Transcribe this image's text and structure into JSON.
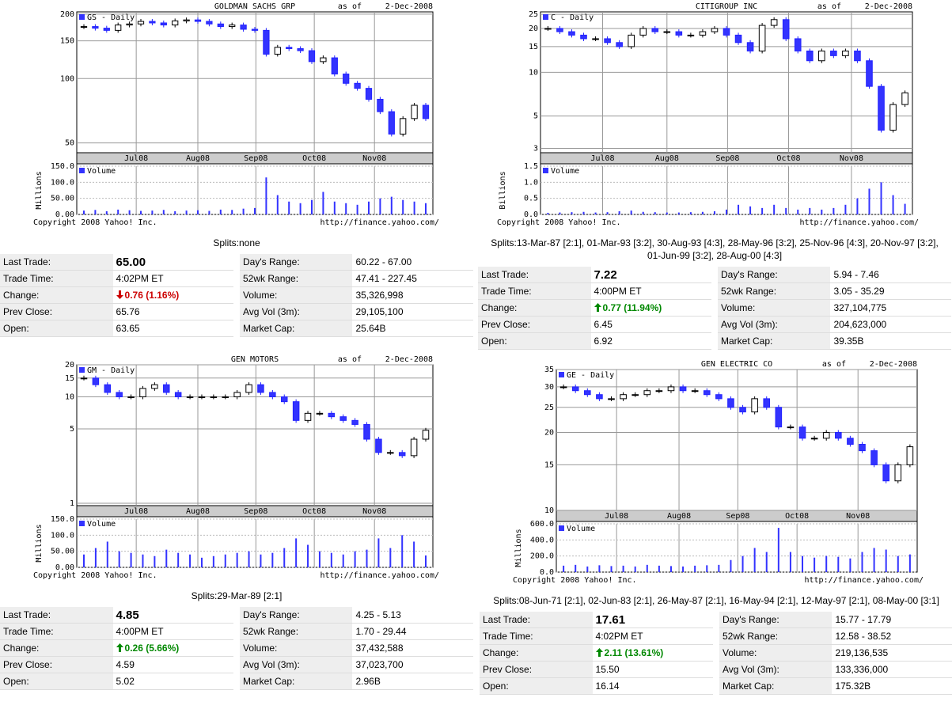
{
  "panels": [
    {
      "title": "GOLDMAN SACHS GRP",
      "as_of": "as of",
      "date": "2-Dec-2008",
      "months": [
        "Jul08",
        "Aug08",
        "Sep08",
        "Oct08",
        "Nov08"
      ],
      "price": {
        "type": "candlestick",
        "legend": "GS - Daily",
        "log_scale": true,
        "ylim": [
          45,
          205
        ],
        "yticks": [
          50,
          100,
          150,
          200
        ],
        "values": [
          175,
          172,
          168,
          178,
          180,
          185,
          182,
          178,
          186,
          188,
          185,
          180,
          175,
          178,
          170,
          168,
          130,
          140,
          138,
          135,
          120,
          125,
          105,
          95,
          90,
          80,
          70,
          55,
          65,
          75,
          65
        ]
      },
      "volume": {
        "type": "bar",
        "legend": "Volume",
        "axis_label": "Millions",
        "ylim": [
          0,
          150
        ],
        "yticks": [
          {
            "value": 0,
            "label": "0.00"
          },
          {
            "value": 50,
            "label": "50.00"
          },
          {
            "value": 100,
            "label": "100.0"
          },
          {
            "value": 150,
            "label": "150.0"
          }
        ],
        "values": [
          12,
          14,
          10,
          15,
          13,
          11,
          12,
          14,
          10,
          12,
          13,
          11,
          15,
          14,
          18,
          20,
          115,
          60,
          40,
          35,
          45,
          70,
          40,
          35,
          30,
          40,
          50,
          55,
          45,
          40,
          35
        ]
      },
      "copyright": "Copyright 2008 Yahoo! Inc.",
      "url": "http://finance.yahoo.com/",
      "splits": "Splits:none",
      "quote": {
        "change_direction": "down",
        "left": [
          [
            "Last Trade:",
            "65.00"
          ],
          [
            "Trade Time:",
            "4:02PM ET"
          ],
          [
            "Change:",
            "0.76 (1.16%)"
          ],
          [
            "Prev Close:",
            "65.76"
          ],
          [
            "Open:",
            "63.65"
          ]
        ],
        "right": [
          [
            "Day's Range:",
            "60.22 - 67.00"
          ],
          [
            "52wk Range:",
            "47.41 - 227.45"
          ],
          [
            "Volume:",
            "35,326,998"
          ],
          [
            "Avg Vol (3m):",
            "29,105,100"
          ],
          [
            "Market Cap:",
            "25.64B"
          ]
        ]
      }
    },
    {
      "title": "CITIGROUP INC",
      "as_of": "as of",
      "date": "2-Dec-2008",
      "months": [
        "Jul08",
        "Aug08",
        "Sep08",
        "Oct08",
        "Nov08"
      ],
      "price": {
        "type": "candlestick",
        "legend": "C - Daily",
        "log_scale": true,
        "ylim": [
          2.8,
          26
        ],
        "yticks": [
          3,
          5,
          10,
          15,
          20,
          25
        ],
        "values": [
          20,
          19,
          18,
          17,
          17,
          16,
          15,
          18,
          20,
          19,
          19,
          18,
          18,
          19,
          20,
          18,
          16,
          14,
          21,
          23,
          17,
          14,
          12,
          14,
          13,
          14,
          12,
          8,
          4,
          6,
          7.22
        ]
      },
      "volume": {
        "type": "bar",
        "legend": "Volume",
        "axis_label": "Billions",
        "ylim": [
          0,
          1.5
        ],
        "yticks": [
          {
            "value": 0,
            "label": "0.0"
          },
          {
            "value": 0.5,
            "label": "0.5"
          },
          {
            "value": 1,
            "label": "1.0"
          },
          {
            "value": 1.5,
            "label": "1.5"
          }
        ],
        "values": [
          0.05,
          0.06,
          0.07,
          0.08,
          0.06,
          0.07,
          0.1,
          0.12,
          0.08,
          0.07,
          0.06,
          0.06,
          0.07,
          0.08,
          0.1,
          0.15,
          0.3,
          0.25,
          0.2,
          0.3,
          0.2,
          0.15,
          0.2,
          0.15,
          0.2,
          0.3,
          0.5,
          0.8,
          1.0,
          0.6,
          0.33
        ]
      },
      "copyright": "Copyright 2008 Yahoo! Inc.",
      "url": "http://finance.yahoo.com/",
      "splits": "Splits:13-Mar-87 [2:1], 01-Mar-93 [3:2], 30-Aug-93 [4:3], 28-May-96 [3:2], 25-Nov-96 [4:3], 20-Nov-97 [3:2], 01-Jun-99 [3:2], 28-Aug-00 [4:3]",
      "quote": {
        "change_direction": "up",
        "left": [
          [
            "Last Trade:",
            "7.22"
          ],
          [
            "Trade Time:",
            "4:00PM ET"
          ],
          [
            "Change:",
            "0.77 (11.94%)"
          ],
          [
            "Prev Close:",
            "6.45"
          ],
          [
            "Open:",
            "6.92"
          ]
        ],
        "right": [
          [
            "Day's Range:",
            "5.94 - 7.46"
          ],
          [
            "52wk Range:",
            "3.05 - 35.29"
          ],
          [
            "Volume:",
            "327,104,775"
          ],
          [
            "Avg Vol (3m):",
            "204,623,000"
          ],
          [
            "Market Cap:",
            "39.35B"
          ]
        ]
      }
    },
    {
      "title": "GEN MOTORS",
      "as_of": "as of",
      "date": "2-Dec-2008",
      "months": [
        "Jul08",
        "Aug08",
        "Sep08",
        "Oct08",
        "Nov08"
      ],
      "price": {
        "type": "candlestick",
        "legend": "GM - Daily",
        "log_scale": true,
        "ylim": [
          0.95,
          20
        ],
        "yticks": [
          1,
          5,
          10,
          15,
          20
        ],
        "values": [
          15,
          13,
          11,
          10,
          10,
          12,
          13,
          11,
          10,
          10,
          10,
          10,
          10,
          11,
          13,
          11,
          10,
          9,
          6,
          7,
          7,
          6.5,
          6,
          5.5,
          4,
          3,
          3,
          2.8,
          4,
          4.85
        ]
      },
      "volume": {
        "type": "bar",
        "legend": "Volume",
        "axis_label": "Millions",
        "ylim": [
          0,
          150
        ],
        "yticks": [
          {
            "value": 0,
            "label": "0.00"
          },
          {
            "value": 50,
            "label": "50.00"
          },
          {
            "value": 100,
            "label": "100.0"
          },
          {
            "value": 150,
            "label": "150.0"
          }
        ],
        "values": [
          40,
          60,
          80,
          50,
          45,
          40,
          35,
          55,
          45,
          40,
          30,
          35,
          40,
          45,
          50,
          40,
          45,
          60,
          90,
          70,
          50,
          45,
          40,
          50,
          55,
          90,
          60,
          100,
          80,
          37
        ]
      },
      "copyright": "Copyright 2008 Yahoo! Inc.",
      "url": "http://finance.yahoo.com/",
      "splits": "Splits:29-Mar-89 [2:1]",
      "quote": {
        "change_direction": "up",
        "left": [
          [
            "Last Trade:",
            "4.85"
          ],
          [
            "Trade Time:",
            "4:00PM ET"
          ],
          [
            "Change:",
            "0.26 (5.66%)"
          ],
          [
            "Prev Close:",
            "4.59"
          ],
          [
            "Open:",
            "5.02"
          ]
        ],
        "right": [
          [
            "Day's Range:",
            "4.25 - 5.13"
          ],
          [
            "52wk Range:",
            "1.70 - 29.44"
          ],
          [
            "Volume:",
            "37,432,588"
          ],
          [
            "Avg Vol (3m):",
            "37,023,700"
          ],
          [
            "Market Cap:",
            "2.96B"
          ]
        ]
      }
    },
    {
      "title": "GEN ELECTRIC CO",
      "as_of": "as of",
      "date": "2-Dec-2008",
      "months": [
        "Jul08",
        "Aug08",
        "Sep08",
        "Oct08",
        "Nov08"
      ],
      "price": {
        "type": "candlestick",
        "legend": "GE - Daily",
        "log_scale": true,
        "ylim": [
          10,
          35
        ],
        "yticks": [
          10,
          15,
          20,
          25,
          30,
          35
        ],
        "values": [
          30,
          29,
          28,
          27,
          27,
          28,
          28,
          29,
          29,
          30,
          29,
          29,
          28,
          27,
          25,
          24,
          27,
          25,
          21,
          21,
          19,
          19,
          20,
          19,
          18,
          17,
          15,
          13,
          15,
          17.61
        ]
      },
      "volume": {
        "type": "bar",
        "legend": "Volume",
        "axis_label": "Millions",
        "ylim": [
          0,
          600
        ],
        "yticks": [
          {
            "value": 0,
            "label": "0.0"
          },
          {
            "value": 200,
            "label": "200.0"
          },
          {
            "value": 400,
            "label": "400.0"
          },
          {
            "value": 600,
            "label": "600.0"
          }
        ],
        "values": [
          80,
          90,
          70,
          85,
          75,
          80,
          70,
          90,
          80,
          75,
          70,
          80,
          85,
          90,
          150,
          200,
          300,
          250,
          550,
          250,
          200,
          180,
          200,
          190,
          170,
          250,
          300,
          280,
          200,
          220
        ]
      },
      "copyright": "Copyright 2008 Yahoo! Inc.",
      "url": "http://finance.yahoo.com/",
      "splits": "Splits:08-Jun-71 [2:1], 02-Jun-83 [2:1], 26-May-87 [2:1], 16-May-94 [2:1], 12-May-97 [2:1], 08-May-00 [3:1]",
      "quote": {
        "change_direction": "up",
        "left": [
          [
            "Last Trade:",
            "17.61"
          ],
          [
            "Trade Time:",
            "4:02PM ET"
          ],
          [
            "Change:",
            "2.11 (13.61%)"
          ],
          [
            "Prev Close:",
            "15.50"
          ],
          [
            "Open:",
            "16.14"
          ]
        ],
        "right": [
          [
            "Day's Range:",
            "15.77 - 17.79"
          ],
          [
            "52wk Range:",
            "12.58 - 38.52"
          ],
          [
            "Volume:",
            "219,136,535"
          ],
          [
            "Avg Vol (3m):",
            "133,336,000"
          ],
          [
            "Market Cap:",
            "175.32B"
          ]
        ]
      }
    }
  ]
}
